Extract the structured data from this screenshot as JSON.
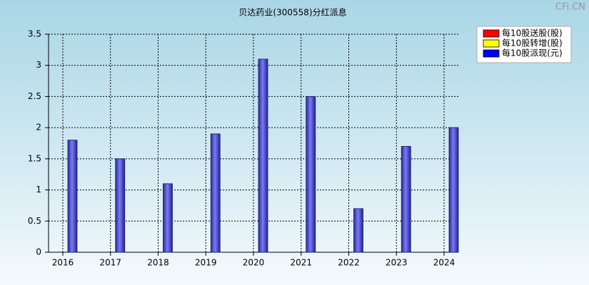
{
  "chart_data": {
    "type": "bar",
    "title": "贝达药业(300558)分红派息",
    "watermark": "CFi.CN",
    "categories": [
      "2016",
      "2017",
      "2018",
      "2019",
      "2020",
      "2021",
      "2022",
      "2023",
      "2024"
    ],
    "series": [
      {
        "name": "每10股送股(股)",
        "color": "#ff0000",
        "values": [
          null,
          null,
          null,
          null,
          null,
          null,
          null,
          null,
          null
        ]
      },
      {
        "name": "每10股转增(股)",
        "color": "#ffff00",
        "values": [
          null,
          null,
          null,
          null,
          null,
          null,
          null,
          null,
          null
        ]
      },
      {
        "name": "每10股派现(元)",
        "color": "#0000ff",
        "values": [
          1.8,
          1.5,
          1.1,
          1.9,
          3.1,
          2.5,
          0.7,
          1.7,
          2.0
        ]
      }
    ],
    "ylim": [
      0,
      3.5
    ],
    "yticks": [
      0,
      0.5,
      1,
      1.5,
      2,
      2.5,
      3,
      3.5
    ],
    "grid": true,
    "legend": "top-right"
  }
}
